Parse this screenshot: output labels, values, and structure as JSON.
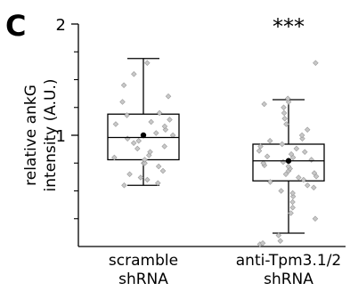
{
  "panel_label": "C",
  "chart_data": {
    "type": "box",
    "title": "",
    "ylabel": [
      "relative ankG",
      "intensity (A.U.)"
    ],
    "ylim": [
      0,
      2
    ],
    "yticks": [
      {
        "value": 1,
        "label": "1"
      },
      {
        "value": 2,
        "label": "2"
      }
    ],
    "yminor": [
      0.25,
      0.5,
      0.75,
      1.25,
      1.5,
      1.75
    ],
    "categories": [
      [
        "scramble",
        "shRNA"
      ],
      [
        "anti-Tpm3.1/2",
        "shRNA"
      ]
    ],
    "significance": [
      "",
      "***"
    ],
    "boxes": [
      {
        "whisker_low": 0.55,
        "q1": 0.78,
        "median": 0.98,
        "q3": 1.19,
        "whisker_high": 1.69,
        "mean": 1.0,
        "points": [
          0.55,
          0.57,
          0.6,
          0.62,
          0.65,
          0.68,
          0.72,
          0.75,
          0.75,
          0.78,
          0.8,
          0.82,
          0.85,
          0.88,
          0.9,
          0.93,
          0.95,
          0.97,
          1.0,
          1.02,
          1.05,
          1.08,
          1.1,
          1.12,
          1.14,
          1.18,
          1.2,
          1.3,
          1.35,
          1.45,
          1.55,
          1.65
        ]
      },
      {
        "whisker_low": 0.12,
        "q1": 0.59,
        "median": 0.77,
        "q3": 0.92,
        "whisker_high": 1.32,
        "mean": 0.77,
        "points": [
          0.02,
          0.03,
          0.05,
          0.1,
          0.25,
          0.3,
          0.35,
          0.4,
          0.45,
          0.48,
          0.5,
          0.53,
          0.55,
          0.58,
          0.6,
          0.62,
          0.63,
          0.65,
          0.66,
          0.68,
          0.7,
          0.72,
          0.73,
          0.75,
          0.76,
          0.78,
          0.8,
          0.81,
          0.83,
          0.85,
          0.86,
          0.88,
          0.9,
          0.92,
          0.95,
          0.97,
          1.0,
          1.05,
          1.1,
          1.15,
          1.2,
          1.25,
          1.28,
          1.3,
          1.33,
          1.65
        ]
      }
    ]
  }
}
